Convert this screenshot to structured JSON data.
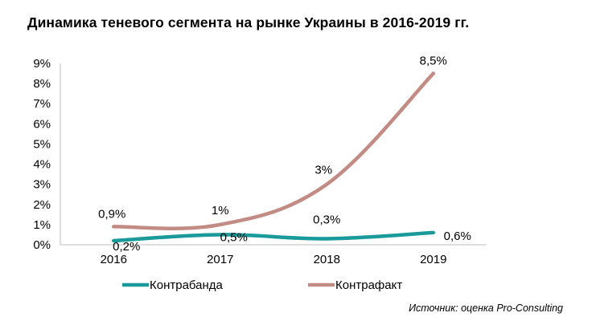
{
  "chart_data": {
    "type": "line",
    "title": "Динамика теневого сегмента на рынке Украины в 2016-2019 гг.",
    "categories": [
      "2016",
      "2017",
      "2018",
      "2019"
    ],
    "series": [
      {
        "name": "Контрабанда",
        "color": "#1a9a9a",
        "values": [
          0.2,
          0.5,
          0.3,
          0.6
        ],
        "labels": [
          "0,2%",
          "0,5%",
          "0,3%",
          "0,6%"
        ]
      },
      {
        "name": "Контрафакт",
        "color": "#c28b84",
        "values": [
          0.9,
          1,
          3,
          8.5
        ],
        "labels": [
          "0,9%",
          "1%",
          "3%",
          "8,5%"
        ]
      }
    ],
    "yticks": [
      "0%",
      "1%",
      "2%",
      "3%",
      "4%",
      "5%",
      "6%",
      "7%",
      "8%",
      "9%"
    ],
    "ylim": [
      0,
      9
    ],
    "grid": false,
    "legend_position": "bottom"
  },
  "source": "Источник: оценка Pro-Consulting"
}
